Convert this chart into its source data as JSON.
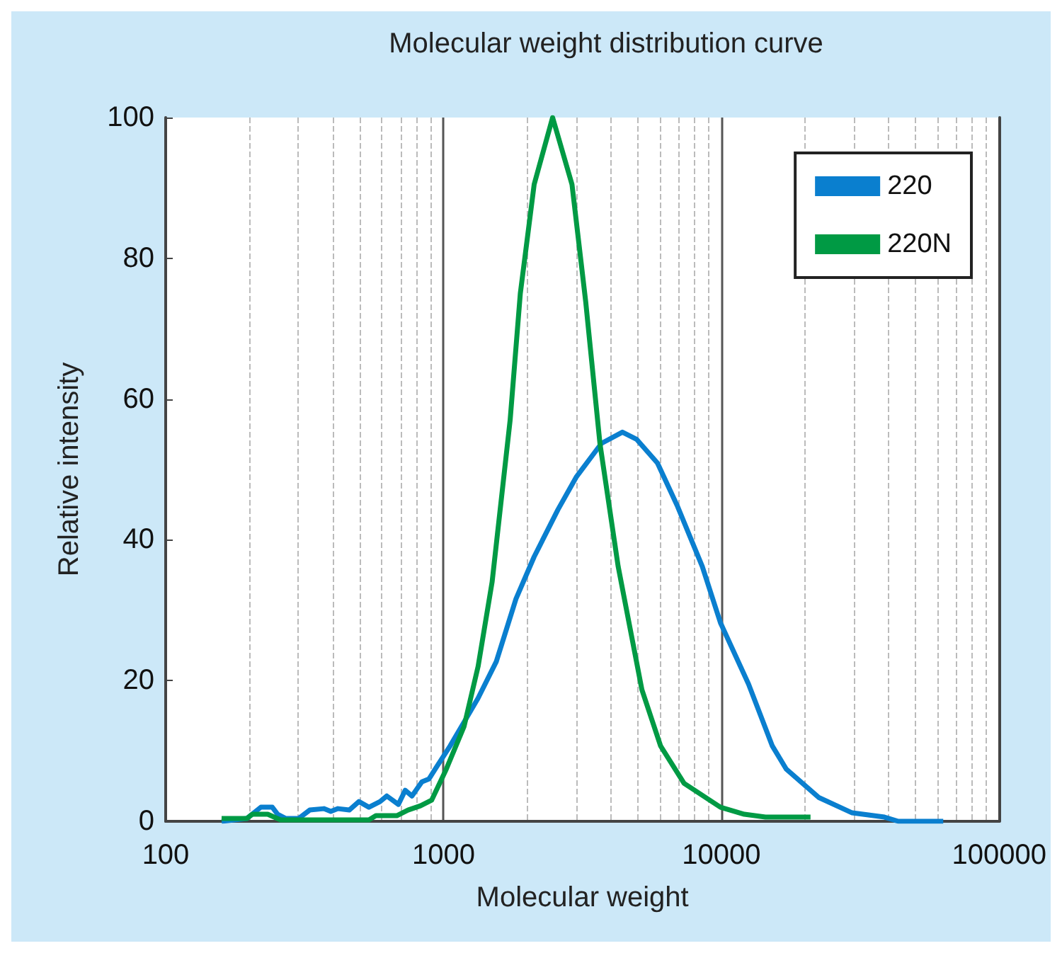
{
  "chart_data": {
    "type": "line",
    "title": "Molecular weight distribution curve",
    "xlabel": "Molecular weight",
    "ylabel": "Relative intensity",
    "log": "x",
    "xlim": [
      100,
      100000
    ],
    "xticks": [
      100,
      1000,
      10000,
      100000
    ],
    "ylim": [
      0,
      100
    ],
    "yticks": [
      0,
      20,
      40,
      60,
      80,
      100
    ],
    "grid": "x",
    "legend": "top right",
    "marker": "none",
    "line_style": "solid",
    "series": [
      {
        "name": "220",
        "color": "#0a7fcf",
        "x": [
          159,
          196,
          220,
          242,
          253,
          271,
          301,
          330,
          371,
          393,
          417,
          458,
          496,
          539,
          591,
          625,
          688,
          728,
          770,
          836,
          886,
          940,
          1056,
          1332,
          1549,
          1823,
          2120,
          2583,
          3003,
          3702,
          4405,
          4949,
          5890,
          6929,
          8540,
          9930,
          12530,
          15260,
          17140,
          22390,
          29580,
          38640,
          43370,
          62900
        ],
        "values": [
          0,
          0.4,
          2,
          2,
          1,
          0.4,
          0.4,
          1.6,
          1.8,
          1.4,
          1.8,
          1.6,
          2.8,
          2,
          2.8,
          3.6,
          2.4,
          4.4,
          3.6,
          5.6,
          6,
          7.6,
          10.7,
          17.5,
          22.7,
          31.6,
          37.6,
          44.3,
          48.9,
          53.7,
          55.3,
          54.3,
          50.9,
          44.9,
          36.2,
          28.2,
          19.5,
          10.7,
          7.4,
          3.4,
          1.2,
          0.6,
          0,
          0
        ]
      },
      {
        "name": "220N",
        "color": "#009a44",
        "x": [
          159,
          196,
          205,
          233,
          259,
          539,
          571,
          679,
          745,
          826,
          906,
          1023,
          1186,
          1332,
          1496,
          1737,
          1890,
          2120,
          2470,
          2900,
          3250,
          3656,
          4253,
          5177,
          6045,
          7343,
          9930,
          12100,
          14410,
          20940
        ],
        "values": [
          0.4,
          0.4,
          1,
          1,
          0.2,
          0.2,
          0.8,
          0.8,
          1.6,
          2.2,
          3,
          7.4,
          13.5,
          22,
          34,
          57,
          75,
          90.5,
          100,
          90.5,
          73.8,
          53.7,
          36.2,
          18.7,
          10.7,
          5.4,
          2,
          1,
          0.6,
          0.6
        ]
      }
    ]
  }
}
